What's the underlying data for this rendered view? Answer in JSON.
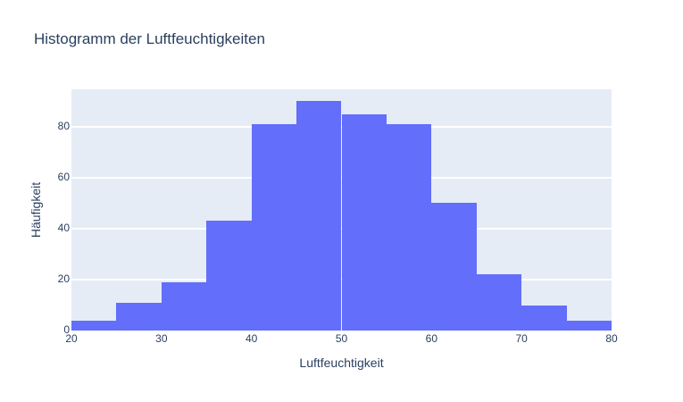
{
  "chart_data": {
    "type": "bar",
    "subtype": "histogram",
    "title": "Histogramm der Luftfeuchtigkeiten",
    "xlabel": "Luftfeuchtigkeit",
    "ylabel": "Häufigkeit",
    "bin_edges": [
      20,
      25,
      30,
      35,
      40,
      45,
      50,
      55,
      60,
      65,
      70,
      75,
      80
    ],
    "categories": [
      "20-25",
      "25-30",
      "30-35",
      "35-40",
      "40-45",
      "45-50",
      "50-55",
      "55-60",
      "60-65",
      "65-70",
      "70-75",
      "75-80"
    ],
    "values": [
      4,
      11,
      19,
      43,
      81,
      90,
      85,
      81,
      50,
      22,
      10,
      4
    ],
    "xlim": [
      20,
      80
    ],
    "ylim": [
      0,
      94.7
    ],
    "xticks": [
      "20",
      "30",
      "40",
      "50",
      "60",
      "70",
      "80"
    ],
    "yticks": [
      "0",
      "20",
      "40",
      "60",
      "80"
    ],
    "grid": true,
    "bar_color": "#636efa",
    "plot_bgcolor": "#e5ecf6"
  }
}
